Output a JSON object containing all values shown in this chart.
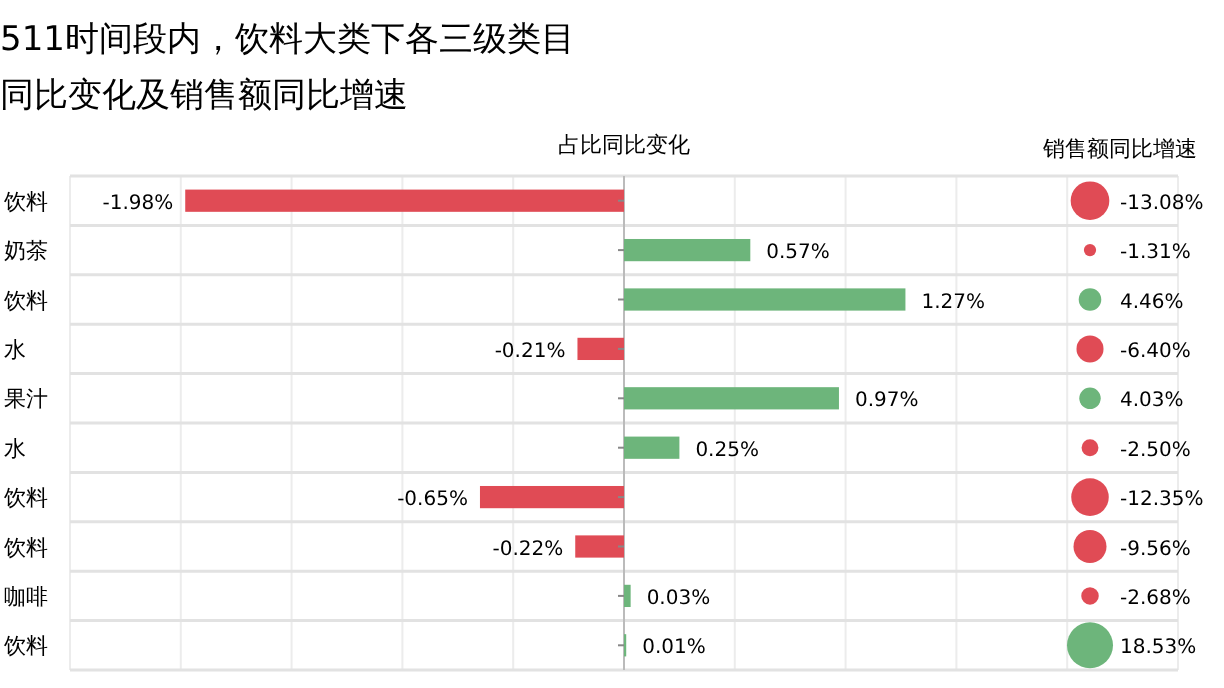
{
  "chart_data": [
    {
      "type": "bar",
      "orientation": "horizontal",
      "title": "511时间段内，饮料大类下各三级类目",
      "subtitle": "同比变化及销售额同比增速",
      "xlabel": "占比同比变化",
      "categories": [
        "饮料",
        "奶茶",
        "饮料",
        "水",
        "果汁",
        "水",
        "饮料",
        "饮料",
        "咖啡",
        "饮料"
      ],
      "values": [
        -1.98,
        0.57,
        1.27,
        -0.21,
        0.97,
        0.25,
        -0.65,
        -0.22,
        0.03,
        0.01
      ],
      "colors": [
        "#e04b55",
        "#6db57b",
        "#6db57b",
        "#e04b55",
        "#6db57b",
        "#6db57b",
        "#e04b55",
        "#e04b55",
        "#6db57b",
        "#6db57b"
      ],
      "value_labels": [
        "-1.98%",
        "0.57%",
        "1.27%",
        "-0.21%",
        "0.97%",
        "0.25%",
        "-0.65%",
        "-0.22%",
        "0.03%",
        "0.01%"
      ],
      "xlim": [
        -2.5,
        2.5
      ],
      "xticks": [
        {
          "value": -2.5,
          "label": null
        },
        {
          "value": -2,
          "label": null
        },
        {
          "value": -1.5,
          "label": null
        },
        {
          "value": -1,
          "label": null
        },
        {
          "value": -0.5,
          "label": null
        },
        {
          "value": 0,
          "label": null
        },
        {
          "value": 0.5,
          "label": null
        },
        {
          "value": 1,
          "label": null
        },
        {
          "value": 1.5,
          "label": null
        },
        {
          "value": 2,
          "label": null
        },
        {
          "value": 2.5,
          "label": null
        }
      ],
      "grid": true
    },
    {
      "type": "other",
      "xlabel": "销售额同比增速",
      "values": [
        -13.08,
        -1.31,
        4.46,
        -6.4,
        4.03,
        -2.5,
        -12.35,
        -9.56,
        -2.68,
        18.53
      ],
      "colors": [
        "#e04b55",
        "#e04b55",
        "#6db57b",
        "#e04b55",
        "#6db57b",
        "#e04b55",
        "#e04b55",
        "#e04b55",
        "#e04b55",
        "#6db57b"
      ],
      "value_labels": [
        "-13.08%",
        "-1.31%",
        "4.46%",
        "-6.40%",
        "4.03%",
        "-2.50%",
        "-12.35%",
        "-9.56%",
        "-2.68%",
        "18.53%"
      ]
    }
  ]
}
